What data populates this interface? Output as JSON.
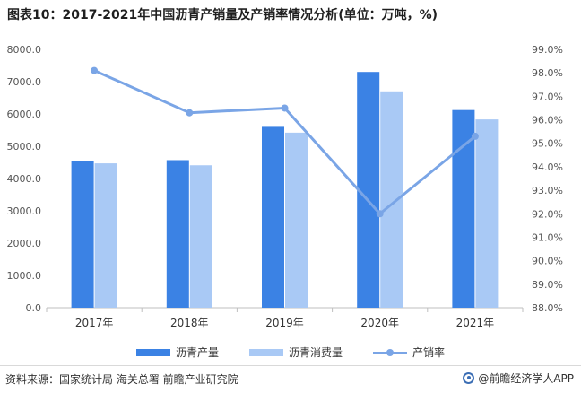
{
  "title": "图表10：2017-2021年中国沥青产销量及产销率情况分析(单位：万吨，%)",
  "source": "资料来源：国家统计局 海关总署 前瞻产业研究院",
  "brand": "@前瞻经济学人APP",
  "colors": {
    "production": "#3b82e4",
    "consumption": "#a9c9f5",
    "rate": "#7aa5e6"
  },
  "chart_data": {
    "type": "bar",
    "categories": [
      "2017年",
      "2018年",
      "2019年",
      "2020年",
      "2021年"
    ],
    "series": [
      {
        "name": "沥青产量",
        "type": "bar",
        "axis": "left",
        "values": [
          4540,
          4570,
          5600,
          7300,
          6120
        ]
      },
      {
        "name": "沥青消费量",
        "type": "bar",
        "axis": "left",
        "values": [
          4470,
          4410,
          5420,
          6700,
          5830
        ]
      },
      {
        "name": "产销率",
        "type": "line",
        "axis": "right",
        "values": [
          98.1,
          96.3,
          96.5,
          92.0,
          95.3
        ]
      }
    ],
    "y_left": {
      "min": 0,
      "max": 8000,
      "ticks": [
        "0.0",
        "1000.0",
        "2000.0",
        "3000.0",
        "4000.0",
        "5000.0",
        "6000.0",
        "7000.0",
        "8000.0"
      ]
    },
    "y_right": {
      "min": 88,
      "max": 99,
      "ticks": [
        "88.0%",
        "89.0%",
        "90.0%",
        "91.0%",
        "92.0%",
        "93.0%",
        "94.0%",
        "95.0%",
        "96.0%",
        "97.0%",
        "98.0%",
        "99.0%"
      ]
    },
    "legend_position": "bottom",
    "grid": false
  }
}
